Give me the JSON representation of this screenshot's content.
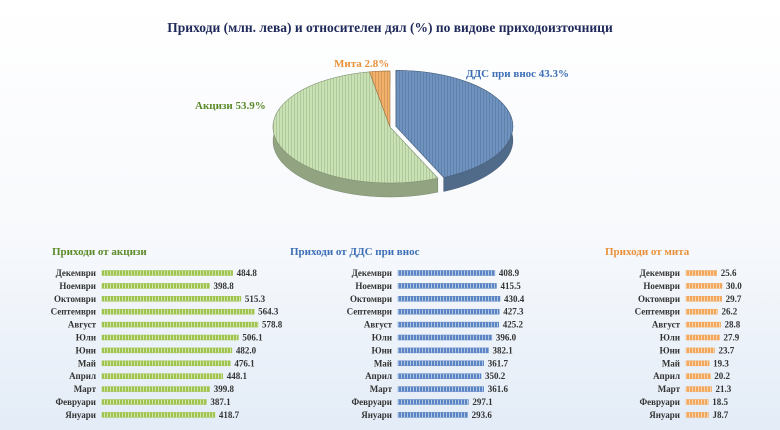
{
  "title": "Приходи (млн. лева) и относителен дял (%) по видове приходоизточници",
  "chart_data": [
    {
      "type": "pie",
      "labels": [
        "ДДС при внос",
        "Акцизи",
        "Мита"
      ],
      "values": [
        43.3,
        53.9,
        2.8
      ],
      "value_labels": [
        "ДДС при внос 43.3%",
        "Акцизи 53.9%",
        "Мита 2.8%"
      ],
      "colors": [
        "#6f93c0",
        "#c9e2b3",
        "#f2b06a"
      ],
      "three_d": true
    },
    {
      "type": "bar",
      "orientation": "horizontal",
      "title": "Приходи от акцизи",
      "categories": [
        "Декември",
        "Ноември",
        "Октомври",
        "Септември",
        "Август",
        "Юли",
        "Юни",
        "Май",
        "Април",
        "Март",
        "Февруари",
        "Януари"
      ],
      "values": [
        484.8,
        398.8,
        515.3,
        564.3,
        578.8,
        506.1,
        482.0,
        476.1,
        448.1,
        399.8,
        387.1,
        418.7
      ],
      "value_labels": [
        "484.8",
        "398.8",
        "515.3",
        "564.3",
        "578.8",
        "506.1",
        "482.0",
        "476.1",
        "448.1",
        "399.8",
        "387.1",
        "418.7"
      ],
      "color": "#9fc44e",
      "title_color": "#5b8a2a"
    },
    {
      "type": "bar",
      "orientation": "horizontal",
      "title": "Приходи от ДДС при внос",
      "categories": [
        "Декември",
        "Ноември",
        "Октомври",
        "Септември",
        "Август",
        "Юли",
        "Юни",
        "Май",
        "Април",
        "Март",
        "Февруари",
        "Януари"
      ],
      "values": [
        408.9,
        415.5,
        430.4,
        427.3,
        425.2,
        396.0,
        382.1,
        361.7,
        350.2,
        361.6,
        297.1,
        293.6
      ],
      "value_labels": [
        "408.9",
        "415.5",
        "430.4",
        "427.3",
        "425.2",
        "396.0",
        "382.1",
        "361.7",
        "350.2",
        "361.6",
        "297.1",
        "293.6"
      ],
      "color": "#5b84c4",
      "title_color": "#3c6fb6"
    },
    {
      "type": "bar",
      "orientation": "horizontal",
      "title": "Приходи от мита",
      "categories": [
        "Декември",
        "Ноември",
        "Октомври",
        "Септември",
        "Август",
        "Юли",
        "Юни",
        "Май",
        "Април",
        "Март",
        "Февруари",
        "Януари"
      ],
      "values": [
        25.6,
        30.0,
        29.7,
        26.2,
        28.8,
        27.9,
        23.7,
        19.3,
        20.2,
        21.3,
        18.5,
        18.7
      ],
      "value_labels": [
        "25.6",
        "30.0",
        "29.7",
        "26.2",
        "28.8",
        "27.9",
        "23.7",
        "19.3",
        "20.2",
        "21.3",
        "18.5",
        "J8.7"
      ],
      "color": "#f2a65a",
      "title_color": "#e8913a"
    }
  ]
}
